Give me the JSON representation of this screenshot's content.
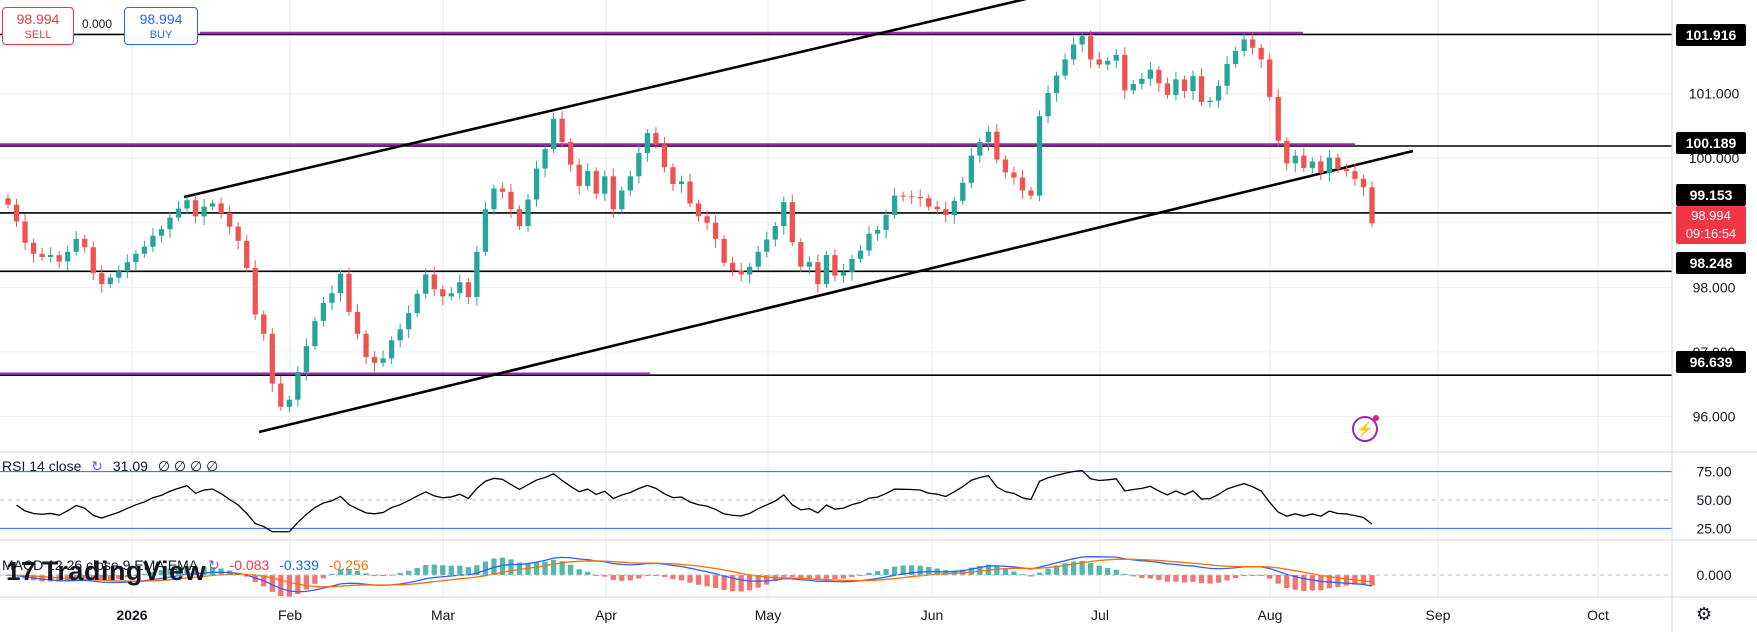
{
  "chart_data": {
    "type": "candlestick",
    "x_axis": {
      "ticks": [
        "2026",
        "Feb",
        "Mar",
        "Apr",
        "May",
        "Jun",
        "Jul",
        "Aug",
        "Sep",
        "Oct"
      ]
    },
    "y_axis": {
      "ticks": [
        96.0,
        97.0,
        98.0,
        99.0,
        100.0,
        101.0
      ],
      "tick_labels": [
        "96.000",
        "97.000",
        "98.000",
        "99.000",
        "100.000",
        "101.000"
      ],
      "range": [
        95.45,
        102.45
      ]
    },
    "horizontal_levels": [
      {
        "value": 101.916,
        "label": "101.916",
        "color": "#000000"
      },
      {
        "value": 100.189,
        "label": "100.189",
        "color": "#000000"
      },
      {
        "value": 99.153,
        "label": "99.153",
        "color": "#000000"
      },
      {
        "value": 98.248,
        "label": "98.248",
        "color": "#000000"
      },
      {
        "value": 96.639,
        "label": "96.639",
        "color": "#000000"
      }
    ],
    "magenta_levels": [
      101.916,
      100.189,
      96.639
    ],
    "trend_channel": {
      "upper": [
        {
          "x": "2026-01-13",
          "y": 99.33
        },
        {
          "x": "2026-06-01",
          "y": 102.5
        }
      ],
      "lower": [
        {
          "x": "2026-01-25",
          "y": 95.4
        },
        {
          "x": "2026-08-24",
          "y": 100.08
        }
      ],
      "mid_upper": [
        {
          "x": "2026-01-13",
          "y": 99.33
        },
        {
          "x": "2026-03-19",
          "y": 100.45
        }
      ]
    },
    "current_price": {
      "value": 98.994,
      "label": "98.994",
      "countdown": "09:16:54"
    },
    "ohlc_closes": [
      99.28,
      99.02,
      98.69,
      98.52,
      98.47,
      98.5,
      98.4,
      98.55,
      98.75,
      98.62,
      98.22,
      98.05,
      98.15,
      98.25,
      98.39,
      98.52,
      98.63,
      98.8,
      98.9,
      99.08,
      99.22,
      99.35,
      99.1,
      99.25,
      99.3,
      99.15,
      98.94,
      98.72,
      98.3,
      97.58,
      97.28,
      96.51,
      96.15,
      96.26,
      96.69,
      97.09,
      97.48,
      97.76,
      97.91,
      98.21,
      97.62,
      97.28,
      96.92,
      96.83,
      96.9,
      97.18,
      97.35,
      97.6,
      97.9,
      98.2,
      97.97,
      97.86,
      97.91,
      98.08,
      97.85,
      98.55,
      99.21,
      99.53,
      99.48,
      99.21,
      98.95,
      99.36,
      99.84,
      100.14,
      100.61,
      100.25,
      99.9,
      99.57,
      99.8,
      99.45,
      99.72,
      99.21,
      99.5,
      99.72,
      100.08,
      100.39,
      100.21,
      99.86,
      99.6,
      99.64,
      99.3,
      99.1,
      99.0,
      98.75,
      98.38,
      98.26,
      98.2,
      98.32,
      98.55,
      98.74,
      98.95,
      99.32,
      98.7,
      98.32,
      98.39,
      98.05,
      98.5,
      98.18,
      98.24,
      98.44,
      98.57,
      98.83,
      98.89,
      99.12,
      99.42,
      99.41,
      99.4,
      99.38,
      99.25,
      99.21,
      99.12,
      99.34,
      99.62,
      100.04,
      100.25,
      100.41,
      99.98,
      99.78,
      99.7,
      99.5,
      99.42,
      100.65,
      101.01,
      101.28,
      101.53,
      101.76,
      101.89,
      101.53,
      101.45,
      101.51,
      101.6,
      101.05,
      101.15,
      101.23,
      101.37,
      101.16,
      100.98,
      101.22,
      101.04,
      101.27,
      100.87,
      100.89,
      101.12,
      101.46,
      101.66,
      101.84,
      101.71,
      101.53,
      100.95,
      100.27,
      99.92,
      100.04,
      99.85,
      99.95,
      99.77,
      100.01,
      99.83,
      99.8,
      99.68,
      99.55,
      98.99
    ],
    "rsi": {
      "label": "RSI 14 close",
      "value": "31.09",
      "extra": "∅ ∅ ∅ ∅",
      "levels": [
        75,
        50,
        25
      ],
      "tick_labels": [
        "75.00",
        "50.00",
        "25.00"
      ]
    },
    "macd": {
      "label": "MACD 12 26 close 9 EMA EMA",
      "histogram": "-0.083",
      "macd": "-0.339",
      "signal": "-0.256",
      "tick_labels": [
        "0.000"
      ]
    }
  },
  "trade": {
    "sell_price": "98.994",
    "sell_label": "SELL",
    "buy_price": "98.994",
    "buy_label": "BUY",
    "spread": "0.000"
  },
  "brand": {
    "name": "TradingView",
    "mark": "17"
  },
  "colors": {
    "up": "#26a69a",
    "down": "#ef5350",
    "level": "#000000",
    "magenta": "#9c27b0",
    "rsi_band": "#2962ff",
    "macd_line": "#2962ff",
    "signal_line": "#ff6d00"
  }
}
